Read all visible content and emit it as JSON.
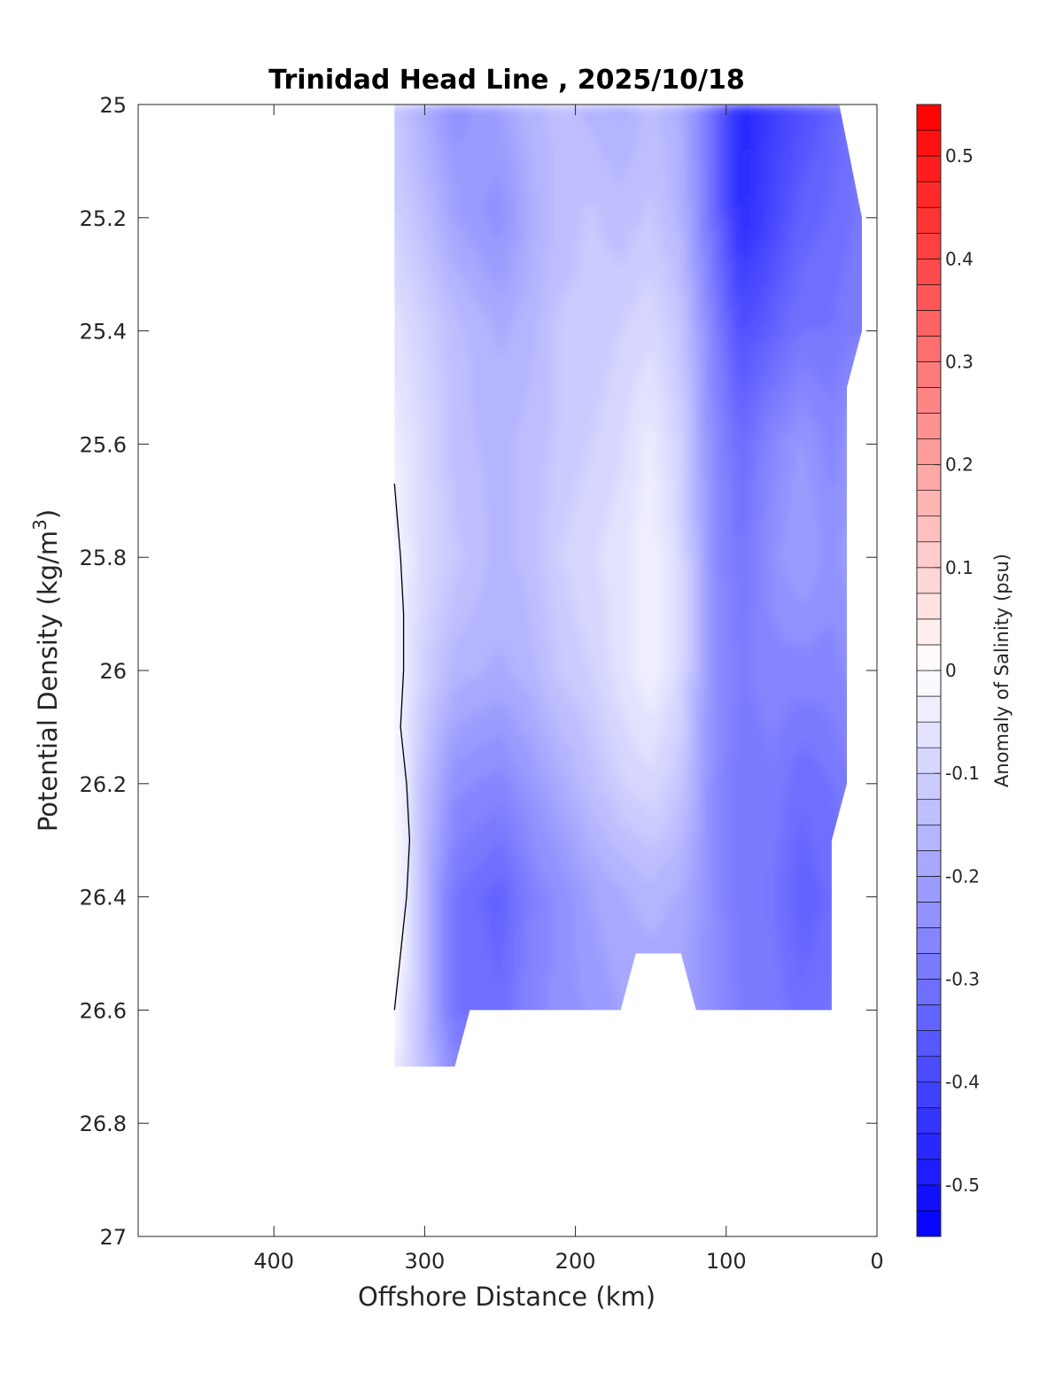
{
  "chart_data": {
    "type": "contour",
    "title": "Trinidad Head Line , 2025/10/18",
    "xlabel": "Offshore Distance (km)",
    "ylabel": "Potential Density (kg/m",
    "ylabel_superscript": "3",
    "ylabel_close": ")",
    "x_reversed": true,
    "y_reversed": true,
    "xlim": [
      0,
      490
    ],
    "ylim": [
      25,
      27
    ],
    "xticks": [
      400,
      300,
      200,
      100,
      0
    ],
    "yticks": [
      "25",
      "25.2",
      "25.4",
      "25.6",
      "25.8",
      "26",
      "26.2",
      "26.4",
      "26.6",
      "26.8",
      "27"
    ],
    "colorbar": {
      "label": "Anomaly of Salinity (psu)",
      "range": [
        -0.55,
        0.55
      ],
      "level_step": 0.025,
      "ticks": [
        "0.5",
        "0.4",
        "0.3",
        "0.2",
        "0.1",
        "0",
        "-0.1",
        "-0.2",
        "-0.3",
        "-0.4",
        "-0.5"
      ],
      "tick_values": [
        0.5,
        0.4,
        0.3,
        0.2,
        0.1,
        0,
        -0.1,
        -0.2,
        -0.3,
        -0.4,
        -0.5
      ],
      "colormap": "blue-white-red",
      "low_color": "#0000ff",
      "mid_color": "#ffffff",
      "high_color": "#ff0000"
    },
    "stations_km": [
      320,
      300,
      280,
      250,
      230,
      210,
      190,
      170,
      150,
      130,
      110,
      90,
      70,
      50,
      30,
      15
    ],
    "density_levels": [
      25.0,
      25.2,
      25.4,
      25.6,
      25.8,
      26.0,
      26.2,
      26.4,
      26.6,
      26.7
    ],
    "anomaly_grid": [
      [
        -0.12,
        -0.18,
        -0.24,
        -0.2,
        -0.16,
        -0.14,
        -0.16,
        -0.18,
        -0.14,
        -0.18,
        -0.3,
        -0.48,
        -0.42,
        -0.38,
        -0.34,
        -0.3
      ],
      [
        -0.1,
        -0.14,
        -0.2,
        -0.24,
        -0.18,
        -0.14,
        -0.12,
        -0.14,
        -0.12,
        -0.16,
        -0.3,
        -0.46,
        -0.4,
        -0.34,
        -0.32,
        -0.3
      ],
      [
        -0.06,
        -0.1,
        -0.14,
        -0.18,
        -0.16,
        -0.12,
        -0.12,
        -0.1,
        -0.08,
        -0.12,
        -0.26,
        -0.38,
        -0.34,
        -0.3,
        -0.3,
        -0.28
      ],
      [
        -0.04,
        -0.08,
        -0.14,
        -0.16,
        -0.14,
        -0.12,
        -0.1,
        -0.08,
        -0.04,
        -0.1,
        -0.24,
        -0.32,
        -0.26,
        -0.22,
        -0.26,
        -0.22
      ],
      [
        -0.02,
        -0.08,
        -0.12,
        -0.16,
        -0.14,
        -0.1,
        -0.08,
        -0.06,
        -0.03,
        -0.08,
        -0.24,
        -0.3,
        -0.24,
        -0.2,
        -0.24,
        -0.2
      ],
      [
        -0.02,
        -0.1,
        -0.16,
        -0.18,
        -0.16,
        -0.12,
        -0.1,
        -0.06,
        -0.03,
        -0.08,
        -0.24,
        -0.28,
        -0.26,
        -0.26,
        -0.26,
        -0.24
      ],
      [
        0.0,
        -0.14,
        -0.24,
        -0.26,
        -0.22,
        -0.18,
        -0.14,
        -0.1,
        -0.08,
        -0.12,
        -0.24,
        -0.3,
        -0.28,
        -0.32,
        -0.3,
        -0.28
      ],
      [
        0.01,
        -0.16,
        -0.3,
        -0.34,
        -0.28,
        -0.24,
        -0.2,
        -0.18,
        -0.16,
        -0.18,
        -0.24,
        -0.3,
        -0.3,
        -0.34,
        -0.32,
        -0.3
      ],
      [
        0.0,
        -0.16,
        -0.3,
        -0.32,
        -0.26,
        -0.24,
        -0.22,
        -0.2,
        -0.2,
        -0.2,
        -0.24,
        -0.28,
        -0.28,
        -0.32,
        -0.3,
        -0.28
      ],
      [
        -0.04,
        -0.14,
        -0.26,
        -0.28,
        -0.26,
        -0.24,
        -0.22,
        -0.2,
        -0.2,
        -0.2,
        -0.24,
        -0.28,
        -0.28,
        -0.3,
        -0.3,
        -0.28
      ]
    ],
    "data_region_km_density": [
      [
        320,
        25.0
      ],
      [
        93,
        25.0
      ],
      [
        25,
        25.0
      ],
      [
        10,
        25.2
      ],
      [
        10,
        25.4
      ],
      [
        20,
        25.5
      ],
      [
        20,
        26.2
      ],
      [
        30,
        26.3
      ],
      [
        30,
        26.6
      ],
      [
        120,
        26.6
      ],
      [
        130,
        26.5
      ],
      [
        160,
        26.5
      ],
      [
        170,
        26.6
      ],
      [
        270,
        26.6
      ],
      [
        280,
        26.7
      ],
      [
        320,
        26.7
      ],
      [
        320,
        25.43
      ]
    ],
    "zero_contour_km_density": [
      [
        320,
        25.67
      ],
      [
        316,
        25.8
      ],
      [
        314,
        25.9
      ],
      [
        314,
        26.0
      ],
      [
        316,
        26.1
      ],
      [
        312,
        26.2
      ],
      [
        310,
        26.3
      ],
      [
        312,
        26.4
      ],
      [
        316,
        26.5
      ],
      [
        320,
        26.6
      ]
    ]
  }
}
